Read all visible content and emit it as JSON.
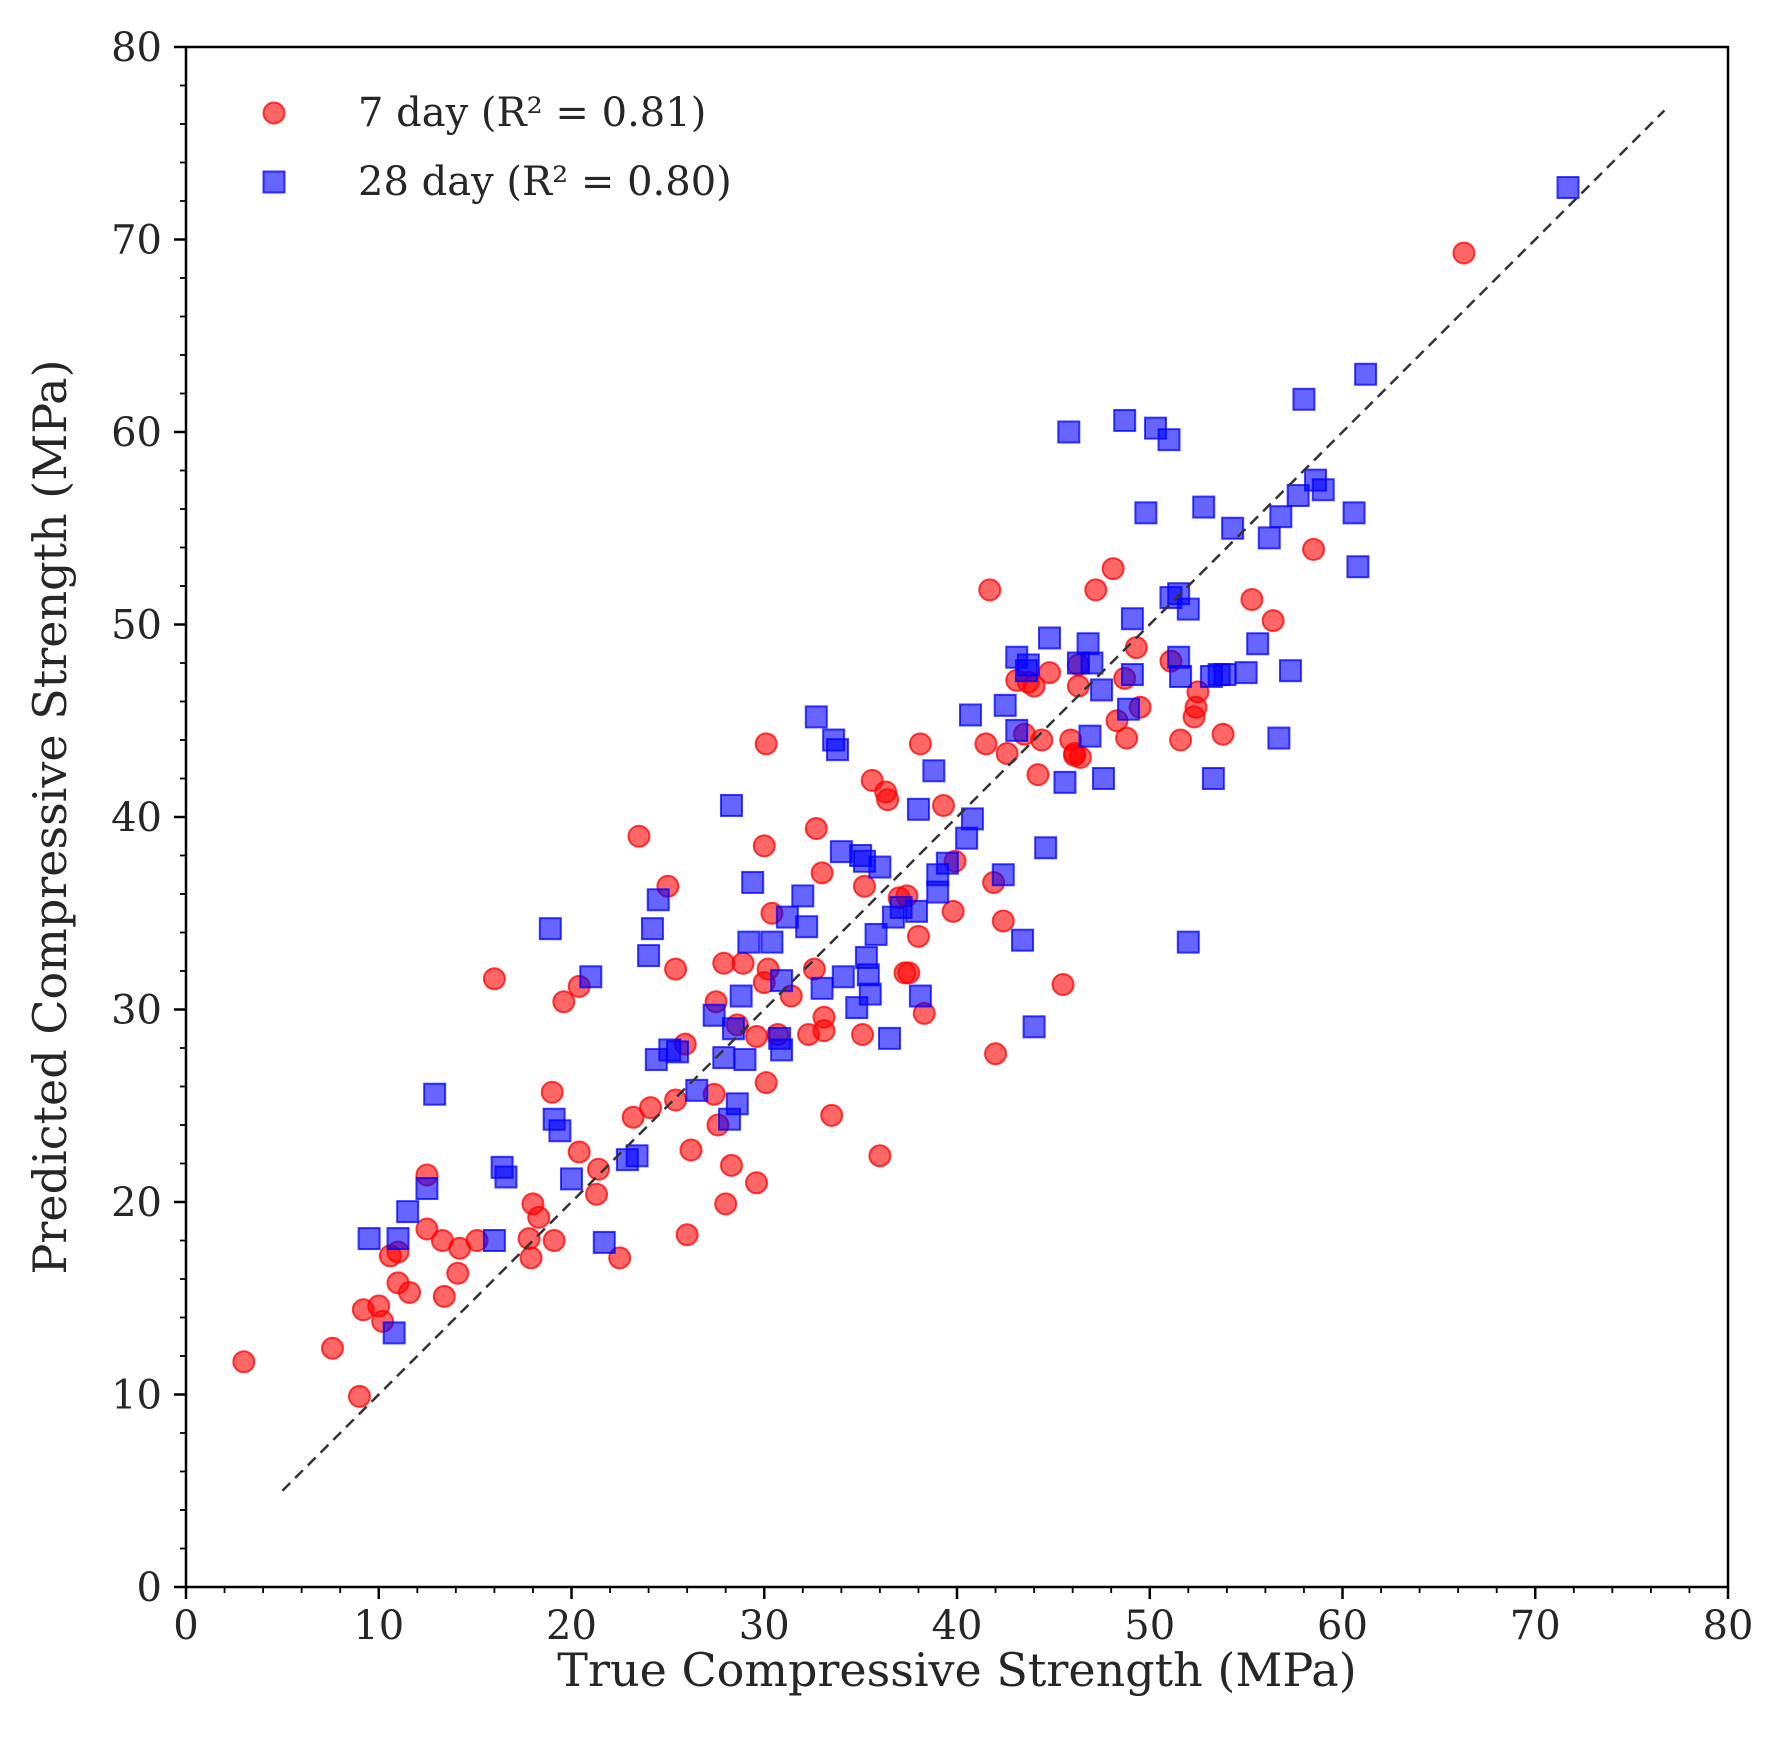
{
  "chart_data": {
    "type": "scatter",
    "title": "",
    "xlabel": "True Compressive Strength (MPa)",
    "ylabel": "Predicted Compressive Strength (MPa)",
    "xlim": [
      0,
      80
    ],
    "ylim": [
      0,
      80
    ],
    "xticks": [
      "0",
      "10",
      "20",
      "30",
      "40",
      "50",
      "60",
      "70",
      "80"
    ],
    "yticks": [
      "0",
      "10",
      "20",
      "30",
      "40",
      "50",
      "60",
      "70",
      "80"
    ],
    "grid": false,
    "legend_position": "top-left",
    "reference_line": {
      "style": "dashed",
      "color": "#333333",
      "x": [
        5,
        76.7
      ],
      "y": [
        5,
        76.7
      ]
    },
    "series": [
      {
        "name": "7 day (R² = 0.81)",
        "marker": "circle",
        "color": "#ff0000",
        "points": [
          [
            3,
            11.7
          ],
          [
            7.6,
            12.4
          ],
          [
            9,
            9.9
          ],
          [
            9.2,
            14.4
          ],
          [
            10,
            14.6
          ],
          [
            10.2,
            13.8
          ],
          [
            10.6,
            17.2
          ],
          [
            11,
            17.4
          ],
          [
            11,
            15.8
          ],
          [
            11.6,
            15.3
          ],
          [
            12.5,
            21.4
          ],
          [
            12.5,
            18.6
          ],
          [
            13.3,
            18
          ],
          [
            13.4,
            15.1
          ],
          [
            14.1,
            16.3
          ],
          [
            14.2,
            17.6
          ],
          [
            15.1,
            18
          ],
          [
            16,
            31.6
          ],
          [
            17.8,
            18.1
          ],
          [
            17.9,
            17.1
          ],
          [
            18,
            19.9
          ],
          [
            18.3,
            19.2
          ],
          [
            19,
            25.7
          ],
          [
            19.1,
            18
          ],
          [
            19.6,
            30.4
          ],
          [
            20.4,
            31.2
          ],
          [
            20.4,
            22.6
          ],
          [
            21.3,
            20.4
          ],
          [
            21.4,
            21.7
          ],
          [
            22.5,
            17.1
          ],
          [
            23.2,
            24.4
          ],
          [
            23.5,
            39
          ],
          [
            24.1,
            24.9
          ],
          [
            25,
            36.4
          ],
          [
            25.4,
            32.1
          ],
          [
            25.4,
            25.3
          ],
          [
            25.9,
            28.2
          ],
          [
            26,
            18.3
          ],
          [
            26.2,
            22.7
          ],
          [
            27.4,
            25.6
          ],
          [
            27.5,
            30.4
          ],
          [
            27.6,
            24
          ],
          [
            27.9,
            32.4
          ],
          [
            28,
            19.9
          ],
          [
            28.3,
            21.9
          ],
          [
            28.6,
            29.2
          ],
          [
            28.9,
            32.4
          ],
          [
            29.6,
            21
          ],
          [
            29.6,
            28.6
          ],
          [
            30,
            38.5
          ],
          [
            30,
            31.4
          ],
          [
            30.1,
            26.2
          ],
          [
            30.1,
            43.8
          ],
          [
            30.2,
            32.1
          ],
          [
            30.4,
            35
          ],
          [
            30.7,
            28.7
          ],
          [
            31.4,
            30.7
          ],
          [
            32.3,
            28.7
          ],
          [
            32.6,
            32.1
          ],
          [
            32.7,
            39.4
          ],
          [
            33,
            37.1
          ],
          [
            33.1,
            29.6
          ],
          [
            33.1,
            28.9
          ],
          [
            33.5,
            24.5
          ],
          [
            35.1,
            28.7
          ],
          [
            35.2,
            36.4
          ],
          [
            35.6,
            41.9
          ],
          [
            36,
            22.4
          ],
          [
            36.3,
            41.3
          ],
          [
            36.4,
            40.9
          ],
          [
            37,
            35.8
          ],
          [
            37.3,
            31.9
          ],
          [
            37.4,
            35.9
          ],
          [
            37.5,
            31.9
          ],
          [
            38,
            33.8
          ],
          [
            38.1,
            43.8
          ],
          [
            38.3,
            29.8
          ],
          [
            39.3,
            40.6
          ],
          [
            39.8,
            35.1
          ],
          [
            39.9,
            37.7
          ],
          [
            41.5,
            43.8
          ],
          [
            41.7,
            51.8
          ],
          [
            41.9,
            36.6
          ],
          [
            42,
            27.7
          ],
          [
            42.4,
            34.6
          ],
          [
            42.6,
            43.3
          ],
          [
            43.1,
            47.1
          ],
          [
            43.5,
            44.3
          ],
          [
            43.7,
            47
          ],
          [
            44,
            46.8
          ],
          [
            44.2,
            42.2
          ],
          [
            44.4,
            44
          ],
          [
            44.8,
            47.5
          ],
          [
            45.5,
            31.3
          ],
          [
            45.9,
            44
          ],
          [
            46.1,
            43.3
          ],
          [
            46.1,
            43.2
          ],
          [
            46.3,
            47.9
          ],
          [
            46.3,
            46.8
          ],
          [
            46.4,
            43.1
          ],
          [
            47.2,
            51.8
          ],
          [
            48.1,
            52.9
          ],
          [
            48.3,
            45
          ],
          [
            48.7,
            47.2
          ],
          [
            48.8,
            44.1
          ],
          [
            49.3,
            48.8
          ],
          [
            49.5,
            45.7
          ],
          [
            51.1,
            48.1
          ],
          [
            51.6,
            44
          ],
          [
            52.3,
            45.2
          ],
          [
            52.4,
            45.7
          ],
          [
            52.5,
            46.5
          ],
          [
            53.8,
            44.3
          ],
          [
            55.3,
            51.3
          ],
          [
            56.4,
            50.2
          ],
          [
            58.5,
            53.9
          ],
          [
            66.3,
            69.3
          ]
        ]
      },
      {
        "name": "28 day (R² = 0.80)",
        "marker": "square",
        "color": "#0000ff",
        "points": [
          [
            9.5,
            18.1
          ],
          [
            10.8,
            13.2
          ],
          [
            11,
            18.1
          ],
          [
            11.5,
            19.5
          ],
          [
            12.5,
            20.7
          ],
          [
            12.9,
            25.6
          ],
          [
            16,
            18
          ],
          [
            16.4,
            21.8
          ],
          [
            16.6,
            21.3
          ],
          [
            18.9,
            34.2
          ],
          [
            19.1,
            24.3
          ],
          [
            19.4,
            23.7
          ],
          [
            20,
            21.2
          ],
          [
            21,
            31.7
          ],
          [
            21.7,
            17.9
          ],
          [
            22.9,
            22.2
          ],
          [
            23.4,
            22.4
          ],
          [
            24,
            32.8
          ],
          [
            24.2,
            34.2
          ],
          [
            24.4,
            27.4
          ],
          [
            24.5,
            35.7
          ],
          [
            25.1,
            27.9
          ],
          [
            25.5,
            27.8
          ],
          [
            26.5,
            25.8
          ],
          [
            27.4,
            29.7
          ],
          [
            27.9,
            27.5
          ],
          [
            28.2,
            24.3
          ],
          [
            28.3,
            40.6
          ],
          [
            28.4,
            29
          ],
          [
            28.6,
            25.1
          ],
          [
            28.8,
            30.7
          ],
          [
            29,
            27.4
          ],
          [
            29.2,
            33.5
          ],
          [
            29.4,
            36.6
          ],
          [
            30.4,
            33.5
          ],
          [
            30.8,
            28.5
          ],
          [
            30.9,
            31.5
          ],
          [
            30.9,
            27.9
          ],
          [
            31.2,
            34.8
          ],
          [
            32,
            35.9
          ],
          [
            32.2,
            34.3
          ],
          [
            32.7,
            45.2
          ],
          [
            33,
            31.1
          ],
          [
            33.6,
            44
          ],
          [
            33.8,
            43.5
          ],
          [
            34,
            38.2
          ],
          [
            34.1,
            31.7
          ],
          [
            34.8,
            30.1
          ],
          [
            35,
            38
          ],
          [
            35.2,
            37.7
          ],
          [
            35.3,
            32.7
          ],
          [
            35.4,
            31.8
          ],
          [
            35.5,
            30.8
          ],
          [
            35.8,
            33.9
          ],
          [
            36,
            37.4
          ],
          [
            36.5,
            28.5
          ],
          [
            36.7,
            34.8
          ],
          [
            37.1,
            35.3
          ],
          [
            37.9,
            35.1
          ],
          [
            38,
            40.4
          ],
          [
            38.1,
            30.7
          ],
          [
            38.8,
            42.4
          ],
          [
            39,
            37
          ],
          [
            39,
            36.1
          ],
          [
            39.5,
            37.6
          ],
          [
            40.5,
            38.9
          ],
          [
            40.7,
            45.3
          ],
          [
            40.8,
            39.9
          ],
          [
            42.4,
            37
          ],
          [
            42.5,
            45.8
          ],
          [
            43.1,
            48.3
          ],
          [
            43.1,
            44.5
          ],
          [
            43.4,
            33.6
          ],
          [
            43.6,
            47.6
          ],
          [
            43.7,
            47.9
          ],
          [
            44,
            29.1
          ],
          [
            44.6,
            38.4
          ],
          [
            44.8,
            49.3
          ],
          [
            45.6,
            41.8
          ],
          [
            45.8,
            60
          ],
          [
            46.3,
            48
          ],
          [
            46.8,
            49
          ],
          [
            46.9,
            44.2
          ],
          [
            47,
            48
          ],
          [
            47.5,
            46.6
          ],
          [
            47.6,
            42
          ],
          [
            48.7,
            60.6
          ],
          [
            48.9,
            45.6
          ],
          [
            49.1,
            47.4
          ],
          [
            49.1,
            50.3
          ],
          [
            49.8,
            55.8
          ],
          [
            50.3,
            60.2
          ],
          [
            51,
            59.6
          ],
          [
            51.1,
            51.4
          ],
          [
            51.5,
            48.3
          ],
          [
            51.5,
            51.6
          ],
          [
            51.6,
            47.3
          ],
          [
            52,
            33.5
          ],
          [
            52,
            50.8
          ],
          [
            52.8,
            56.1
          ],
          [
            53.2,
            47.3
          ],
          [
            53.3,
            42
          ],
          [
            53.6,
            47.4
          ],
          [
            53.9,
            47.4
          ],
          [
            54.3,
            55
          ],
          [
            55,
            47.5
          ],
          [
            55.6,
            49
          ],
          [
            56.2,
            54.5
          ],
          [
            56.7,
            44.1
          ],
          [
            56.8,
            55.6
          ],
          [
            57.3,
            47.6
          ],
          [
            57.7,
            56.7
          ],
          [
            58,
            61.7
          ],
          [
            58.6,
            57.5
          ],
          [
            59,
            57
          ],
          [
            60.6,
            55.8
          ],
          [
            60.8,
            53
          ],
          [
            61.2,
            63
          ],
          [
            71.7,
            72.7
          ]
        ]
      }
    ]
  }
}
